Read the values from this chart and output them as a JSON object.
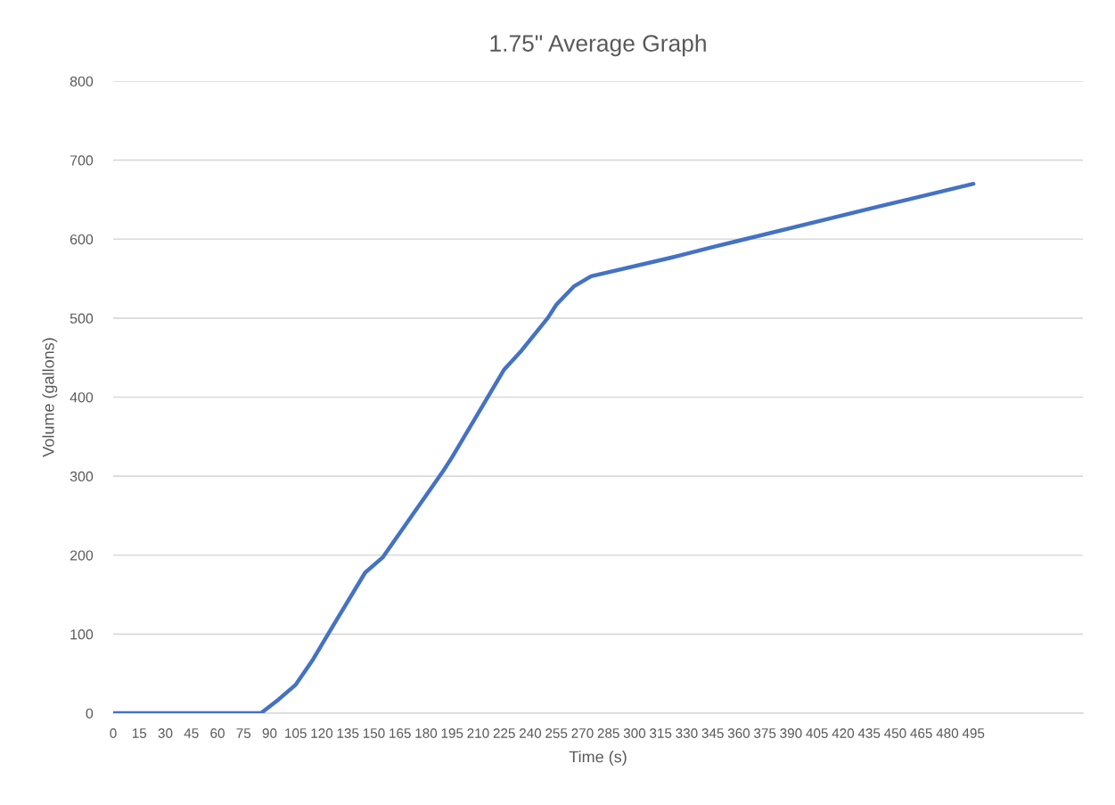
{
  "chart_data": {
    "type": "line",
    "title": "1.75\" Average Graph",
    "xlabel": "Time (s)",
    "ylabel": "Volume (gallons)",
    "x": [
      0,
      85,
      95,
      105,
      115,
      125,
      145,
      155,
      190,
      195,
      225,
      235,
      250,
      255,
      265,
      275,
      320,
      345,
      360,
      440,
      495
    ],
    "series": [
      {
        "color": "#4472c4",
        "values": [
          0,
          0,
          17,
          36,
          68,
          105,
          178,
          197,
          307,
          324,
          435,
          459,
          500,
          517,
          540,
          553,
          576,
          590,
          598,
          641,
          670
        ]
      }
    ],
    "xlim": [
      0,
      558
    ],
    "xticks": [
      0,
      15,
      30,
      45,
      60,
      75,
      90,
      105,
      120,
      135,
      150,
      165,
      180,
      195,
      210,
      225,
      240,
      255,
      270,
      285,
      300,
      315,
      330,
      345,
      360,
      375,
      390,
      405,
      420,
      435,
      450,
      465,
      480,
      495
    ],
    "ylim": [
      0,
      800
    ],
    "yticks": [
      0,
      100,
      200,
      300,
      400,
      500,
      600,
      700,
      800
    ],
    "grid": "y",
    "legend": false,
    "marker": "none",
    "line_style": "solid"
  }
}
